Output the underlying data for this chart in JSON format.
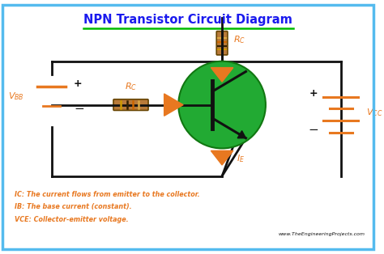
{
  "title": "NPN Transistor Circuit Diagram",
  "title_color": "#008800",
  "title_underline_color": "#00bb00",
  "bg_color": "#ffffff",
  "border_color": "#55bbee",
  "orange": "#e87820",
  "green": "#22aa33",
  "dark": "#111111",
  "resistor_color": "#b87a3a",
  "annotation_color": "#e87820",
  "footnote_lines": [
    "IC: The current flows from emitter to the collector.",
    "IB: The base current (constant).",
    "VCE: Collector-emitter voltage."
  ],
  "website": "www.TheEngineeringProjects.com",
  "title_blue": "#1a1aee"
}
